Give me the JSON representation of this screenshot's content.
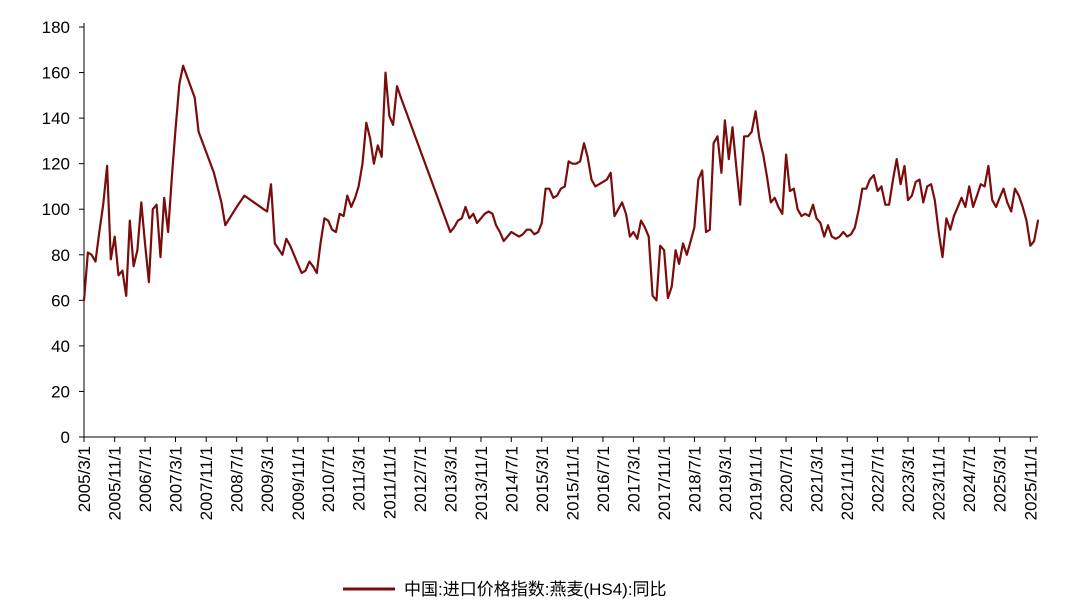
{
  "chart_data": {
    "type": "line",
    "title": "",
    "xlabel": "",
    "ylabel": "",
    "ylim": [
      0,
      180
    ],
    "yticks": [
      0,
      20,
      40,
      60,
      80,
      100,
      120,
      140,
      160,
      180
    ],
    "grid": false,
    "legend_position": "bottom-center",
    "line_color": "#7B0C0C",
    "x_tick_labels": [
      "2005/3/1",
      "2005/11/1",
      "2006/7/1",
      "2007/3/1",
      "2007/11/1",
      "2008/7/1",
      "2009/3/1",
      "2009/11/1",
      "2010/7/1",
      "2011/3/1",
      "2011/11/1",
      "2012/7/1",
      "2013/3/1",
      "2013/11/1",
      "2014/7/1",
      "2015/3/1",
      "2015/11/1",
      "2016/7/1",
      "2017/3/1",
      "2017/11/1",
      "2018/7/1",
      "2019/3/1",
      "2019/11/1",
      "2020/7/1",
      "2021/3/1",
      "2021/11/1",
      "2022/7/1",
      "2023/3/1",
      "2023/11/1",
      "2024/7/1",
      "2025/3/1",
      "2025/11/1"
    ],
    "series": [
      {
        "name": "中国:进口价格指数:燕麦(HS4):同比",
        "points": [
          [
            "2005/3/1",
            60
          ],
          [
            "2005/4/1",
            81
          ],
          [
            "2005/5/1",
            80
          ],
          [
            "2005/6/1",
            77
          ],
          [
            "2005/7/1",
            90
          ],
          [
            "2005/8/1",
            102
          ],
          [
            "2005/9/1",
            119
          ],
          [
            "2005/10/1",
            78
          ],
          [
            "2005/11/1",
            88
          ],
          [
            "2005/12/1",
            71
          ],
          [
            "2006/1/1",
            73
          ],
          [
            "2006/2/1",
            62
          ],
          [
            "2006/3/1",
            95
          ],
          [
            "2006/4/1",
            75
          ],
          [
            "2006/5/1",
            82
          ],
          [
            "2006/6/1",
            103
          ],
          [
            "2006/7/1",
            85
          ],
          [
            "2006/8/1",
            68
          ],
          [
            "2006/9/1",
            100
          ],
          [
            "2006/10/1",
            102
          ],
          [
            "2006/11/1",
            79
          ],
          [
            "2006/12/1",
            105
          ],
          [
            "2007/1/1",
            90
          ],
          [
            "2007/2/1",
            115
          ],
          [
            "2007/3/1",
            135
          ],
          [
            "2007/4/1",
            155
          ],
          [
            "2007/5/1",
            163
          ],
          [
            "2007/8/1",
            149
          ],
          [
            "2007/9/1",
            134
          ],
          [
            "2008/1/1",
            116
          ],
          [
            "2008/3/1",
            103
          ],
          [
            "2008/4/1",
            93
          ],
          [
            "2008/7/1",
            101
          ],
          [
            "2008/9/1",
            106
          ],
          [
            "2009/2/1",
            100
          ],
          [
            "2009/3/1",
            99
          ],
          [
            "2009/4/1",
            111
          ],
          [
            "2009/5/1",
            85
          ],
          [
            "2009/7/1",
            80
          ],
          [
            "2009/8/1",
            87
          ],
          [
            "2009/9/1",
            84
          ],
          [
            "2009/10/1",
            80
          ],
          [
            "2009/11/1",
            76
          ],
          [
            "2009/12/1",
            72
          ],
          [
            "2010/1/1",
            73
          ],
          [
            "2010/2/1",
            77
          ],
          [
            "2010/3/1",
            75
          ],
          [
            "2010/4/1",
            72
          ],
          [
            "2010/5/1",
            85
          ],
          [
            "2010/6/1",
            96
          ],
          [
            "2010/7/1",
            95
          ],
          [
            "2010/8/1",
            91
          ],
          [
            "2010/9/1",
            90
          ],
          [
            "2010/10/1",
            98
          ],
          [
            "2010/11/1",
            97
          ],
          [
            "2010/12/1",
            106
          ],
          [
            "2011/1/1",
            101
          ],
          [
            "2011/2/1",
            105
          ],
          [
            "2011/3/1",
            110
          ],
          [
            "2011/4/1",
            120
          ],
          [
            "2011/5/1",
            138
          ],
          [
            "2011/6/1",
            131
          ],
          [
            "2011/7/1",
            120
          ],
          [
            "2011/8/1",
            128
          ],
          [
            "2011/9/1",
            123
          ],
          [
            "2011/10/1",
            160
          ],
          [
            "2011/11/1",
            141
          ],
          [
            "2011/12/1",
            137
          ],
          [
            "2012/1/1",
            154
          ],
          [
            "2012/2/1",
            149
          ],
          [
            "2013/3/1",
            90
          ],
          [
            "2013/4/1",
            92
          ],
          [
            "2013/5/1",
            95
          ],
          [
            "2013/6/1",
            96
          ],
          [
            "2013/7/1",
            101
          ],
          [
            "2013/8/1",
            96
          ],
          [
            "2013/9/1",
            98
          ],
          [
            "2013/10/1",
            94
          ],
          [
            "2013/11/1",
            96
          ],
          [
            "2013/12/1",
            98
          ],
          [
            "2014/1/1",
            99
          ],
          [
            "2014/2/1",
            98
          ],
          [
            "2014/3/1",
            93
          ],
          [
            "2014/4/1",
            90
          ],
          [
            "2014/5/1",
            86
          ],
          [
            "2014/6/1",
            88
          ],
          [
            "2014/7/1",
            90
          ],
          [
            "2014/8/1",
            89
          ],
          [
            "2014/9/1",
            88
          ],
          [
            "2014/10/1",
            89
          ],
          [
            "2014/11/1",
            91
          ],
          [
            "2014/12/1",
            91
          ],
          [
            "2015/1/1",
            89
          ],
          [
            "2015/2/1",
            90
          ],
          [
            "2015/3/1",
            94
          ],
          [
            "2015/4/1",
            109
          ],
          [
            "2015/5/1",
            109
          ],
          [
            "2015/6/1",
            105
          ],
          [
            "2015/7/1",
            106
          ],
          [
            "2015/8/1",
            109
          ],
          [
            "2015/9/1",
            110
          ],
          [
            "2015/10/1",
            121
          ],
          [
            "2015/11/1",
            120
          ],
          [
            "2015/12/1",
            120
          ],
          [
            "2016/1/1",
            121
          ],
          [
            "2016/2/1",
            129
          ],
          [
            "2016/3/1",
            123
          ],
          [
            "2016/4/1",
            113
          ],
          [
            "2016/5/1",
            110
          ],
          [
            "2016/6/1",
            111
          ],
          [
            "2016/7/1",
            112
          ],
          [
            "2016/8/1",
            113
          ],
          [
            "2016/9/1",
            116
          ],
          [
            "2016/10/1",
            97
          ],
          [
            "2016/11/1",
            100
          ],
          [
            "2016/12/1",
            103
          ],
          [
            "2017/1/1",
            98
          ],
          [
            "2017/2/1",
            88
          ],
          [
            "2017/3/1",
            90
          ],
          [
            "2017/4/1",
            87
          ],
          [
            "2017/5/1",
            95
          ],
          [
            "2017/6/1",
            92
          ],
          [
            "2017/7/1",
            88
          ],
          [
            "2017/8/1",
            62
          ],
          [
            "2017/9/1",
            60
          ],
          [
            "2017/10/1",
            84
          ],
          [
            "2017/11/1",
            82
          ],
          [
            "2017/12/1",
            61
          ],
          [
            "2018/1/1",
            66
          ],
          [
            "2018/2/1",
            82
          ],
          [
            "2018/3/1",
            76
          ],
          [
            "2018/4/1",
            85
          ],
          [
            "2018/5/1",
            80
          ],
          [
            "2018/6/1",
            86
          ],
          [
            "2018/7/1",
            92
          ],
          [
            "2018/8/1",
            113
          ],
          [
            "2018/9/1",
            117
          ],
          [
            "2018/10/1",
            90
          ],
          [
            "2018/11/1",
            91
          ],
          [
            "2018/12/1",
            129
          ],
          [
            "2019/1/1",
            132
          ],
          [
            "2019/2/1",
            116
          ],
          [
            "2019/3/1",
            139
          ],
          [
            "2019/4/1",
            122
          ],
          [
            "2019/5/1",
            136
          ],
          [
            "2019/6/1",
            118
          ],
          [
            "2019/7/1",
            102
          ],
          [
            "2019/8/1",
            132
          ],
          [
            "2019/9/1",
            132
          ],
          [
            "2019/10/1",
            134
          ],
          [
            "2019/11/1",
            143
          ],
          [
            "2019/12/1",
            131
          ],
          [
            "2020/1/1",
            124
          ],
          [
            "2020/2/1",
            114
          ],
          [
            "2020/3/1",
            103
          ],
          [
            "2020/4/1",
            105
          ],
          [
            "2020/5/1",
            101
          ],
          [
            "2020/6/1",
            98
          ],
          [
            "2020/7/1",
            124
          ],
          [
            "2020/8/1",
            108
          ],
          [
            "2020/9/1",
            109
          ],
          [
            "2020/10/1",
            100
          ],
          [
            "2020/11/1",
            97
          ],
          [
            "2020/12/1",
            98
          ],
          [
            "2021/1/1",
            97
          ],
          [
            "2021/2/1",
            102
          ],
          [
            "2021/3/1",
            96
          ],
          [
            "2021/4/1",
            94
          ],
          [
            "2021/5/1",
            88
          ],
          [
            "2021/6/1",
            93
          ],
          [
            "2021/7/1",
            88
          ],
          [
            "2021/8/1",
            87
          ],
          [
            "2021/9/1",
            88
          ],
          [
            "2021/10/1",
            90
          ],
          [
            "2021/11/1",
            88
          ],
          [
            "2021/12/1",
            89
          ],
          [
            "2022/1/1",
            92
          ],
          [
            "2022/2/1",
            100
          ],
          [
            "2022/3/1",
            109
          ],
          [
            "2022/4/1",
            109
          ],
          [
            "2022/5/1",
            113
          ],
          [
            "2022/6/1",
            115
          ],
          [
            "2022/7/1",
            108
          ],
          [
            "2022/8/1",
            110
          ],
          [
            "2022/9/1",
            102
          ],
          [
            "2022/10/1",
            102
          ],
          [
            "2022/11/1",
            113
          ],
          [
            "2022/12/1",
            122
          ],
          [
            "2023/1/1",
            111
          ],
          [
            "2023/2/1",
            119
          ],
          [
            "2023/3/1",
            104
          ],
          [
            "2023/4/1",
            106
          ],
          [
            "2023/5/1",
            112
          ],
          [
            "2023/6/1",
            113
          ],
          [
            "2023/7/1",
            103
          ],
          [
            "2023/8/1",
            110
          ],
          [
            "2023/9/1",
            111
          ],
          [
            "2023/10/1",
            104
          ],
          [
            "2023/11/1",
            90
          ],
          [
            "2023/12/1",
            79
          ],
          [
            "2024/1/1",
            96
          ],
          [
            "2024/2/1",
            91
          ],
          [
            "2024/3/1",
            97
          ],
          [
            "2024/4/1",
            101
          ],
          [
            "2024/5/1",
            105
          ],
          [
            "2024/6/1",
            101
          ],
          [
            "2024/7/1",
            110
          ],
          [
            "2024/8/1",
            101
          ],
          [
            "2024/9/1",
            106
          ],
          [
            "2024/10/1",
            111
          ],
          [
            "2024/11/1",
            110
          ],
          [
            "2024/12/1",
            119
          ],
          [
            "2025/1/1",
            104
          ],
          [
            "2025/2/1",
            101
          ],
          [
            "2025/3/1",
            105
          ],
          [
            "2025/4/1",
            109
          ],
          [
            "2025/5/1",
            103
          ],
          [
            "2025/6/1",
            99
          ],
          [
            "2025/7/1",
            109
          ],
          [
            "2025/8/1",
            106
          ],
          [
            "2025/9/1",
            101
          ],
          [
            "2025/10/1",
            95
          ],
          [
            "2025/11/1",
            84
          ],
          [
            "2025/12/1",
            86
          ],
          [
            "2026/1/1",
            95
          ]
        ]
      }
    ]
  }
}
